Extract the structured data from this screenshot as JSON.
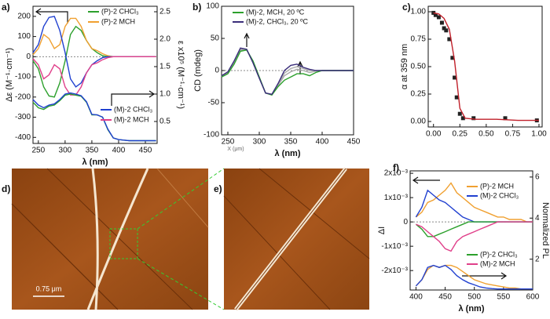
{
  "chart_data": [
    {
      "type": "line",
      "label": "a)",
      "xlabel": "λ (nm)",
      "ylabel": "Δε (M⁻¹·cm⁻¹)",
      "y2label": "ε x10⁵ (M⁻¹·cm⁻¹)",
      "x": [
        240,
        250,
        260,
        270,
        280,
        290,
        300,
        310,
        320,
        330,
        340,
        350,
        360,
        370,
        380,
        390,
        400,
        410,
        420,
        430,
        440,
        450,
        460,
        470
      ],
      "xlim": [
        240,
        472
      ],
      "xticks": [
        250,
        300,
        350,
        400,
        450
      ],
      "ylim": [
        -430,
        250
      ],
      "yticks": [
        -400,
        -300,
        -200,
        -100,
        0,
        100,
        200
      ],
      "y2lim": [
        0.1,
        2.6
      ],
      "y2ticks": [
        0.5,
        {
          "value": 1.0,
          "label": "1.0"
        },
        1.5,
        {
          "value": 2.0,
          "label": "2.0"
        },
        2.5
      ],
      "zero_line": true,
      "series": [
        {
          "name": "(P)-2 CHCl₃",
          "color": "#2ca02c",
          "values": [
            -20,
            -60,
            -150,
            -195,
            -200,
            -130,
            -20,
            110,
            150,
            130,
            80,
            40,
            20,
            5,
            0,
            0,
            0,
            0,
            0,
            0,
            0,
            0,
            0,
            0
          ]
        },
        {
          "name": "(P)-2 MCH",
          "color": "#f0a030",
          "values": [
            10,
            40,
            110,
            90,
            40,
            60,
            150,
            190,
            190,
            150,
            80,
            40,
            30,
            15,
            5,
            0,
            0,
            0,
            0,
            0,
            0,
            0,
            0,
            0
          ]
        },
        {
          "name": "(M)-2 CHCl₃",
          "color": "#2040d0",
          "values": [
            20,
            60,
            150,
            195,
            200,
            130,
            20,
            -110,
            -150,
            -130,
            -80,
            -40,
            -20,
            -5,
            0,
            0,
            0,
            0,
            0,
            0,
            0,
            0,
            0,
            0
          ]
        },
        {
          "name": "(M)-2 MCH",
          "color": "#e0408a",
          "values": [
            -10,
            -40,
            -110,
            -90,
            -40,
            -60,
            -150,
            -190,
            -190,
            -150,
            -80,
            -40,
            -30,
            -15,
            -5,
            0,
            0,
            0,
            0,
            0,
            0,
            0,
            0,
            0
          ]
        },
        {
          "color": "#2ca02c",
          "axis": "y2",
          "values": [
            0.85,
            0.75,
            0.72,
            0.78,
            0.8,
            0.88,
            0.98,
            1.0,
            0.98,
            0.96,
            0.85,
            0.62,
            0.62,
            0.58,
            0.35,
            0.2,
            0.17,
            0.16,
            0.15,
            0.15,
            0.15,
            0.15,
            0.15,
            0.15
          ]
        },
        {
          "color": "#2040d0",
          "axis": "y2",
          "values": [
            0.9,
            0.8,
            0.75,
            0.8,
            0.82,
            0.9,
            1.0,
            1.02,
            1.0,
            0.97,
            0.86,
            0.63,
            0.62,
            0.58,
            0.36,
            0.2,
            0.17,
            0.16,
            0.15,
            0.15,
            0.15,
            0.15,
            0.15,
            0.15
          ]
        }
      ]
    },
    {
      "type": "line",
      "label": "b)",
      "xlabel": "λ (nm)",
      "ylabel": "CD (mdeg)",
      "annotation": "X (μm)",
      "x": [
        240,
        250,
        260,
        270,
        280,
        290,
        300,
        310,
        320,
        330,
        340,
        350,
        360,
        370,
        380,
        390,
        400,
        410,
        420,
        430,
        440,
        450
      ],
      "xlim": [
        240,
        450
      ],
      "xticks": [
        250,
        300,
        350,
        400,
        450
      ],
      "ylim": [
        -100,
        100
      ],
      "yticks": [
        -100,
        -50,
        0,
        50,
        100
      ],
      "zero_line": true,
      "series": [
        {
          "color": "#aaaaaa",
          "values": [
            -9,
            -4,
            12,
            32,
            32,
            14,
            -11,
            -35,
            -38,
            -23,
            -8,
            -2,
            2,
            0,
            -3,
            -1,
            0,
            0,
            0,
            0,
            0,
            0
          ]
        },
        {
          "color": "#aaaaaa",
          "values": [
            -9,
            -3,
            13,
            33,
            32,
            13,
            -11,
            -35,
            -37,
            -22,
            -4,
            3,
            6,
            3,
            0,
            0,
            0,
            0,
            0,
            0,
            0,
            0
          ]
        },
        {
          "name": "(M)-2, MCH, 20 ºC",
          "color": "#2ca02c",
          "values": [
            -10,
            -5,
            10,
            30,
            32,
            15,
            -10,
            -35,
            -38,
            -25,
            -15,
            -10,
            -5,
            -5,
            -8,
            -3,
            0,
            0,
            0,
            0,
            0,
            0
          ]
        },
        {
          "name": "(M)-2, CHCl₃, 20 ºC",
          "color": "#3a2d7a",
          "values": [
            -8,
            -2,
            15,
            35,
            33,
            12,
            -12,
            -35,
            -37,
            -20,
            0,
            8,
            10,
            5,
            2,
            0,
            0,
            0,
            0,
            0,
            0,
            0
          ]
        }
      ]
    },
    {
      "type": "scatter",
      "label": "c)",
      "ylabel": "α at 359 nm",
      "xlim": [
        -0.05,
        1.03
      ],
      "xticks": [
        {
          "value": 0,
          "label": "0.00"
        },
        {
          "value": 0.25,
          "label": "0.25"
        },
        {
          "value": 0.5,
          "label": "0.50"
        },
        {
          "value": 0.75,
          "label": "0.75"
        },
        {
          "value": 1,
          "label": "1.00"
        }
      ],
      "ylim": [
        -0.05,
        1.05
      ],
      "yticks": [
        {
          "value": 0,
          "label": "0.00"
        },
        {
          "value": 0.25,
          "label": "0.25"
        },
        {
          "value": 0.5,
          "label": "0.50"
        },
        {
          "value": 0.75,
          "label": "0.75"
        },
        {
          "value": 1,
          "label": "1.00"
        }
      ],
      "series": [
        {
          "color": "#222222",
          "style": "marker",
          "x": [
            0,
            0.02,
            0.05,
            0.08,
            0.1,
            0.12,
            0.15,
            0.18,
            0.2,
            0.22,
            0.25,
            0.28,
            0.38,
            0.68,
            0.98
          ],
          "values": [
            0.99,
            0.97,
            0.95,
            0.9,
            0.85,
            0.83,
            0.75,
            0.58,
            0.4,
            0.22,
            0.07,
            0.03,
            0.03,
            0.03,
            0.01
          ]
        },
        {
          "color": "#c0202a",
          "style": "line",
          "x": [
            0,
            0.05,
            0.1,
            0.15,
            0.2,
            0.25,
            0.3,
            0.4,
            0.6,
            0.8,
            1.0
          ],
          "values": [
            0.99,
            0.98,
            0.94,
            0.84,
            0.55,
            0.12,
            0.03,
            0.02,
            0.02,
            0.01,
            0.01
          ]
        }
      ]
    },
    {
      "type": "line",
      "label": "f)",
      "xlabel": "λ (nm)",
      "ylabel": "ΔI",
      "y2label": "Normalized PL",
      "x": [
        400,
        410,
        420,
        430,
        440,
        450,
        460,
        470,
        480,
        490,
        500,
        510,
        520,
        530,
        540,
        550,
        560,
        570,
        580,
        590,
        600
      ],
      "xlim": [
        390,
        600
      ],
      "xticks": [
        400,
        450,
        500,
        550,
        600
      ],
      "ylim": [
        -0.0028,
        0.0021
      ],
      "yticks": [
        {
          "value": -0.002,
          "label": "-2x10⁻³"
        },
        {
          "value": -0.001,
          "label": "-1x10⁻³"
        },
        0,
        {
          "value": 0.001,
          "label": "1x10⁻³"
        },
        {
          "value": 0.002,
          "label": "2x10⁻³"
        }
      ],
      "y2lim": [
        0.5,
        6.3
      ],
      "y2ticks": [
        2,
        4,
        6
      ],
      "zero_line": true,
      "series": [
        {
          "name": "(P)-2 MCH",
          "color": "#f0a030",
          "values": [
            0.0002,
            0.0004,
            0.0008,
            0.0009,
            0.0011,
            0.0013,
            0.0016,
            0.0012,
            0.001,
            0.0008,
            0.0006,
            0.0005,
            0.0004,
            0.0003,
            0.0002,
            0.0002,
            0.0001,
            0.0001,
            0.0001,
            0,
            0
          ]
        },
        {
          "name": "(M)-2 CHCl₃",
          "color": "#2040d0",
          "values": [
            0.0002,
            0.0006,
            0.0013,
            0.0011,
            0.0009,
            0.0008,
            0.0006,
            0.0004,
            0.0002,
            0.0001,
            0,
            0,
            0,
            0,
            0,
            0,
            0,
            0,
            0,
            0,
            0
          ]
        },
        {
          "name": "(P)-2 CHCl₃",
          "color": "#2ca02c",
          "values": [
            -0.0001,
            -0.0003,
            -0.0006,
            -0.0006,
            -0.0005,
            -0.0004,
            -0.0003,
            -0.0002,
            -0.0001,
            0,
            0,
            0,
            0,
            0,
            0,
            0,
            0,
            0,
            0,
            0,
            0
          ]
        },
        {
          "name": "(M)-2 MCH",
          "color": "#e0408a",
          "values": [
            -0.0001,
            -0.0002,
            -0.0004,
            -0.0006,
            -0.0008,
            -0.0011,
            -0.0012,
            -0.0008,
            -0.0006,
            -0.0005,
            -0.0004,
            -0.0003,
            -0.0002,
            -0.0001,
            0,
            0,
            0,
            0,
            0,
            0,
            0
          ]
        },
        {
          "color": "#f0a030",
          "axis": "y2",
          "values": [
            0.7,
            1.0,
            1.5,
            1.7,
            1.6,
            1.7,
            1.7,
            1.6,
            1.4,
            1.2,
            1.0,
            0.9,
            0.8,
            0.75,
            0.7,
            0.65,
            0.6,
            0.6,
            0.55,
            0.55,
            0.55
          ]
        },
        {
          "color": "#2040d0",
          "axis": "y2",
          "values": [
            0.7,
            1.0,
            1.6,
            1.7,
            1.6,
            1.7,
            1.5,
            1.2,
            1.0,
            0.85,
            0.75,
            0.65,
            0.6,
            0.57,
            0.55,
            0.55,
            0.55,
            0.55,
            0.55,
            0.55,
            0.55
          ]
        }
      ]
    }
  ],
  "images": [
    {
      "label": "d)",
      "scale_bar": "0.75 μm"
    },
    {
      "label": "e)"
    }
  ]
}
